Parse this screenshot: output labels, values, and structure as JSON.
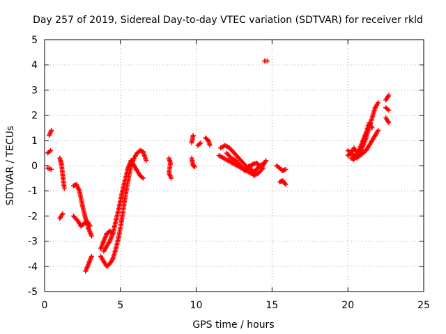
{
  "chart_data": {
    "type": "scatter",
    "title": "Day 257 of 2019, Sidereal Day-to-day VTEC variation (SDTVAR) for receiver rkld",
    "xlabel": "GPS time / hours",
    "ylabel": "SDTVAR / TECUs",
    "xlim": [
      0,
      25
    ],
    "ylim": [
      -5,
      5
    ],
    "xticks": [
      "0",
      "5",
      "10",
      "15",
      "20",
      "25"
    ],
    "yticks": [
      "-5",
      "-4",
      "-3",
      "-2",
      "-1",
      "0",
      "1",
      "2",
      "3",
      "4",
      "5"
    ],
    "grid": true,
    "marker": "plus",
    "series": [
      {
        "color": "#ff0000",
        "segments": [
          [
            [
              0.3,
              1.2
            ],
            [
              0.45,
              1.4
            ]
          ],
          [
            [
              0.2,
              0.5
            ],
            [
              0.4,
              0.6
            ]
          ],
          [
            [
              0.2,
              -0.1
            ],
            [
              0.45,
              -0.15
            ]
          ],
          [
            [
              1.0,
              0.3
            ],
            [
              1.1,
              0.1
            ],
            [
              1.2,
              -0.4
            ],
            [
              1.3,
              -0.9
            ]
          ],
          [
            [
              1.0,
              -2.1
            ],
            [
              1.2,
              -1.9
            ]
          ],
          [
            [
              1.9,
              -0.8
            ],
            [
              2.1,
              -0.75
            ],
            [
              2.3,
              -1.0
            ],
            [
              2.5,
              -1.6
            ],
            [
              2.7,
              -2.1
            ],
            [
              2.9,
              -2.5
            ],
            [
              3.1,
              -2.8
            ]
          ],
          [
            [
              1.9,
              -2.0
            ],
            [
              2.2,
              -2.2
            ],
            [
              2.4,
              -2.4
            ],
            [
              2.6,
              -2.3
            ],
            [
              2.8,
              -2.2
            ],
            [
              3.0,
              -2.4
            ]
          ],
          [
            [
              2.7,
              -4.2
            ],
            [
              2.9,
              -3.9
            ],
            [
              3.1,
              -3.6
            ]
          ],
          [
            [
              3.7,
              -3.3
            ],
            [
              3.9,
              -3.0
            ],
            [
              4.1,
              -2.7
            ],
            [
              4.3,
              -2.6
            ],
            [
              4.5,
              -2.7
            ]
          ],
          [
            [
              3.7,
              -3.6
            ],
            [
              3.9,
              -3.8
            ],
            [
              4.1,
              -4.0
            ],
            [
              4.3,
              -3.9
            ],
            [
              4.5,
              -3.7
            ],
            [
              4.7,
              -3.3
            ],
            [
              4.9,
              -2.8
            ],
            [
              5.1,
              -2.1
            ],
            [
              5.3,
              -1.3
            ],
            [
              5.5,
              -0.6
            ],
            [
              5.7,
              0.0
            ],
            [
              5.9,
              0.3
            ],
            [
              6.1,
              0.5
            ],
            [
              6.3,
              0.6
            ],
            [
              6.5,
              0.55
            ],
            [
              6.7,
              0.2
            ]
          ],
          [
            [
              3.9,
              -3.4
            ],
            [
              4.1,
              -3.2
            ],
            [
              4.3,
              -3.0
            ],
            [
              4.5,
              -2.7
            ],
            [
              4.7,
              -2.2
            ],
            [
              4.9,
              -1.7
            ],
            [
              5.1,
              -1.1
            ],
            [
              5.3,
              -0.6
            ],
            [
              5.5,
              -0.1
            ],
            [
              5.7,
              0.2
            ],
            [
              5.9,
              0.0
            ],
            [
              6.1,
              -0.2
            ],
            [
              6.3,
              -0.4
            ],
            [
              6.5,
              -0.5
            ]
          ],
          [
            [
              8.2,
              0.3
            ],
            [
              8.3,
              0.1
            ],
            [
              8.2,
              -0.3
            ],
            [
              8.35,
              -0.5
            ]
          ],
          [
            [
              9.7,
              0.9
            ],
            [
              9.8,
              1.2
            ]
          ],
          [
            [
              9.7,
              0.3
            ],
            [
              9.8,
              0.0
            ],
            [
              9.9,
              -0.05
            ]
          ],
          [
            [
              10.1,
              0.8
            ],
            [
              10.3,
              0.9
            ]
          ],
          [
            [
              10.6,
              1.1
            ],
            [
              10.8,
              1.0
            ],
            [
              10.9,
              0.8
            ]
          ],
          [
            [
              11.5,
              0.4
            ],
            [
              11.8,
              0.3
            ],
            [
              12.1,
              0.2
            ],
            [
              12.4,
              0.1
            ],
            [
              12.7,
              0.0
            ],
            [
              13.0,
              -0.1
            ],
            [
              13.3,
              -0.2
            ],
            [
              13.6,
              -0.3
            ],
            [
              13.9,
              -0.2
            ],
            [
              14.2,
              0.0
            ],
            [
              14.5,
              0.1
            ]
          ],
          [
            [
              11.6,
              0.7
            ],
            [
              11.9,
              0.8
            ],
            [
              12.2,
              0.7
            ],
            [
              12.5,
              0.5
            ],
            [
              12.8,
              0.3
            ],
            [
              13.1,
              0.1
            ],
            [
              13.4,
              -0.1
            ],
            [
              13.7,
              0.05
            ],
            [
              14.0,
              0.1
            ],
            [
              14.3,
              -0.1
            ],
            [
              14.6,
              0.2
            ]
          ],
          [
            [
              12.0,
              0.5
            ],
            [
              12.3,
              0.3
            ],
            [
              12.6,
              0.2
            ],
            [
              12.9,
              0.0
            ],
            [
              13.2,
              -0.2
            ],
            [
              13.5,
              0.0
            ],
            [
              13.8,
              -0.4
            ],
            [
              14.1,
              -0.3
            ],
            [
              14.4,
              -0.1
            ]
          ],
          [
            [
              14.5,
              4.15
            ],
            [
              14.7,
              4.15
            ]
          ],
          [
            [
              15.3,
              0.0
            ],
            [
              15.5,
              -0.1
            ],
            [
              15.7,
              -0.2
            ],
            [
              15.9,
              -0.15
            ]
          ],
          [
            [
              15.5,
              -0.65
            ],
            [
              15.7,
              -0.6
            ],
            [
              15.9,
              -0.75
            ]
          ],
          [
            [
              20.0,
              0.6
            ],
            [
              20.2,
              0.5
            ],
            [
              20.4,
              0.4
            ],
            [
              20.6,
              0.3
            ],
            [
              20.8,
              0.5
            ],
            [
              21.0,
              0.8
            ],
            [
              21.2,
              1.1
            ],
            [
              21.4,
              1.5
            ],
            [
              21.6,
              1.9
            ],
            [
              21.8,
              2.3
            ],
            [
              22.0,
              2.5
            ]
          ],
          [
            [
              20.0,
              0.4
            ],
            [
              20.2,
              0.5
            ],
            [
              20.4,
              0.7
            ],
            [
              20.6,
              0.5
            ],
            [
              20.8,
              0.4
            ],
            [
              21.0,
              0.5
            ],
            [
              21.2,
              0.6
            ],
            [
              21.4,
              0.8
            ],
            [
              21.6,
              1.0
            ],
            [
              21.8,
              1.2
            ],
            [
              22.0,
              1.4
            ]
          ],
          [
            [
              20.2,
              0.3
            ],
            [
              20.4,
              0.25
            ],
            [
              20.6,
              0.4
            ],
            [
              20.8,
              0.7
            ],
            [
              21.0,
              1.0
            ],
            [
              21.2,
              1.3
            ],
            [
              21.4,
              1.7
            ],
            [
              21.6,
              1.5
            ]
          ],
          [
            [
              22.5,
              2.6
            ],
            [
              22.7,
              2.8
            ]
          ],
          [
            [
              22.5,
              2.3
            ],
            [
              22.7,
              2.2
            ]
          ],
          [
            [
              22.5,
              1.9
            ],
            [
              22.7,
              1.7
            ]
          ]
        ]
      }
    ]
  }
}
